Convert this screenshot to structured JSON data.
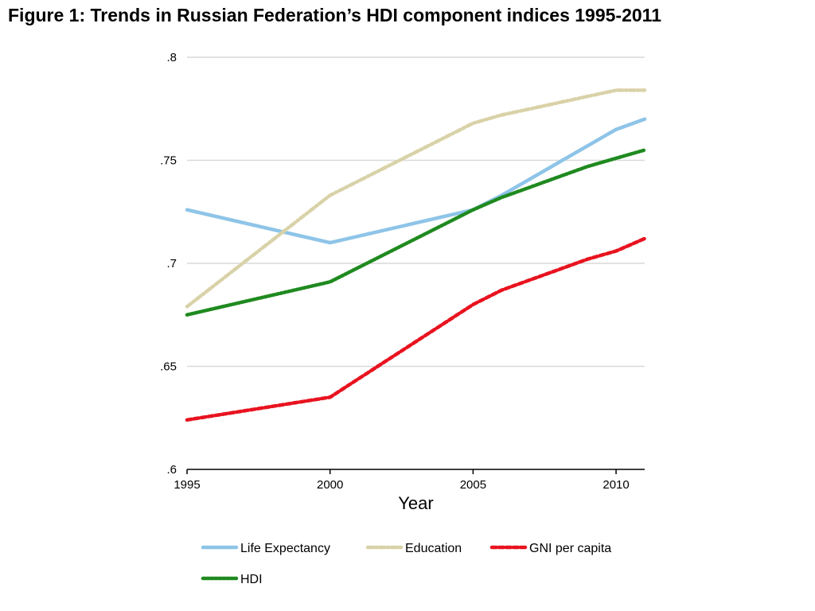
{
  "chart_data": {
    "type": "line",
    "title": "Figure 1: Trends in Russian Federation’s HDI component indices 1995-2011",
    "xlabel": "Year",
    "ylabel": "",
    "xlim": [
      1995,
      2011
    ],
    "ylim": [
      0.6,
      0.8
    ],
    "x_ticks": [
      1995,
      2000,
      2005,
      2010
    ],
    "x_tick_labels": [
      "1995",
      "2000",
      "2005",
      "2010"
    ],
    "y_ticks": [
      0.6,
      0.65,
      0.7,
      0.75,
      0.8
    ],
    "y_tick_labels": [
      ".6",
      ".65",
      ".7",
      ".75",
      ".8"
    ],
    "grid": true,
    "legend_position": "bottom",
    "x": [
      1995,
      2000,
      2005,
      2006,
      2007,
      2008,
      2009,
      2010,
      2011
    ],
    "series": [
      {
        "name": "Life Expectancy",
        "color": "#8ec4e8",
        "style": "solid",
        "values": [
          0.726,
          0.71,
          0.726,
          0.733,
          0.741,
          0.749,
          0.757,
          0.765,
          0.77
        ]
      },
      {
        "name": "Education",
        "color": "#d9d2a8",
        "style": "dash-dot",
        "values": [
          0.679,
          0.733,
          0.768,
          0.772,
          0.775,
          0.778,
          0.781,
          0.784,
          0.784
        ]
      },
      {
        "name": "GNI per capita",
        "color": "#e8131f",
        "style": "dashed",
        "values": [
          0.624,
          0.635,
          0.68,
          0.687,
          0.692,
          0.697,
          0.702,
          0.706,
          0.712
        ]
      },
      {
        "name": "HDI",
        "color": "#1f8a1f",
        "style": "dotted",
        "values": [
          0.675,
          0.691,
          0.726,
          0.732,
          0.737,
          0.742,
          0.747,
          0.751,
          0.755
        ]
      }
    ]
  }
}
